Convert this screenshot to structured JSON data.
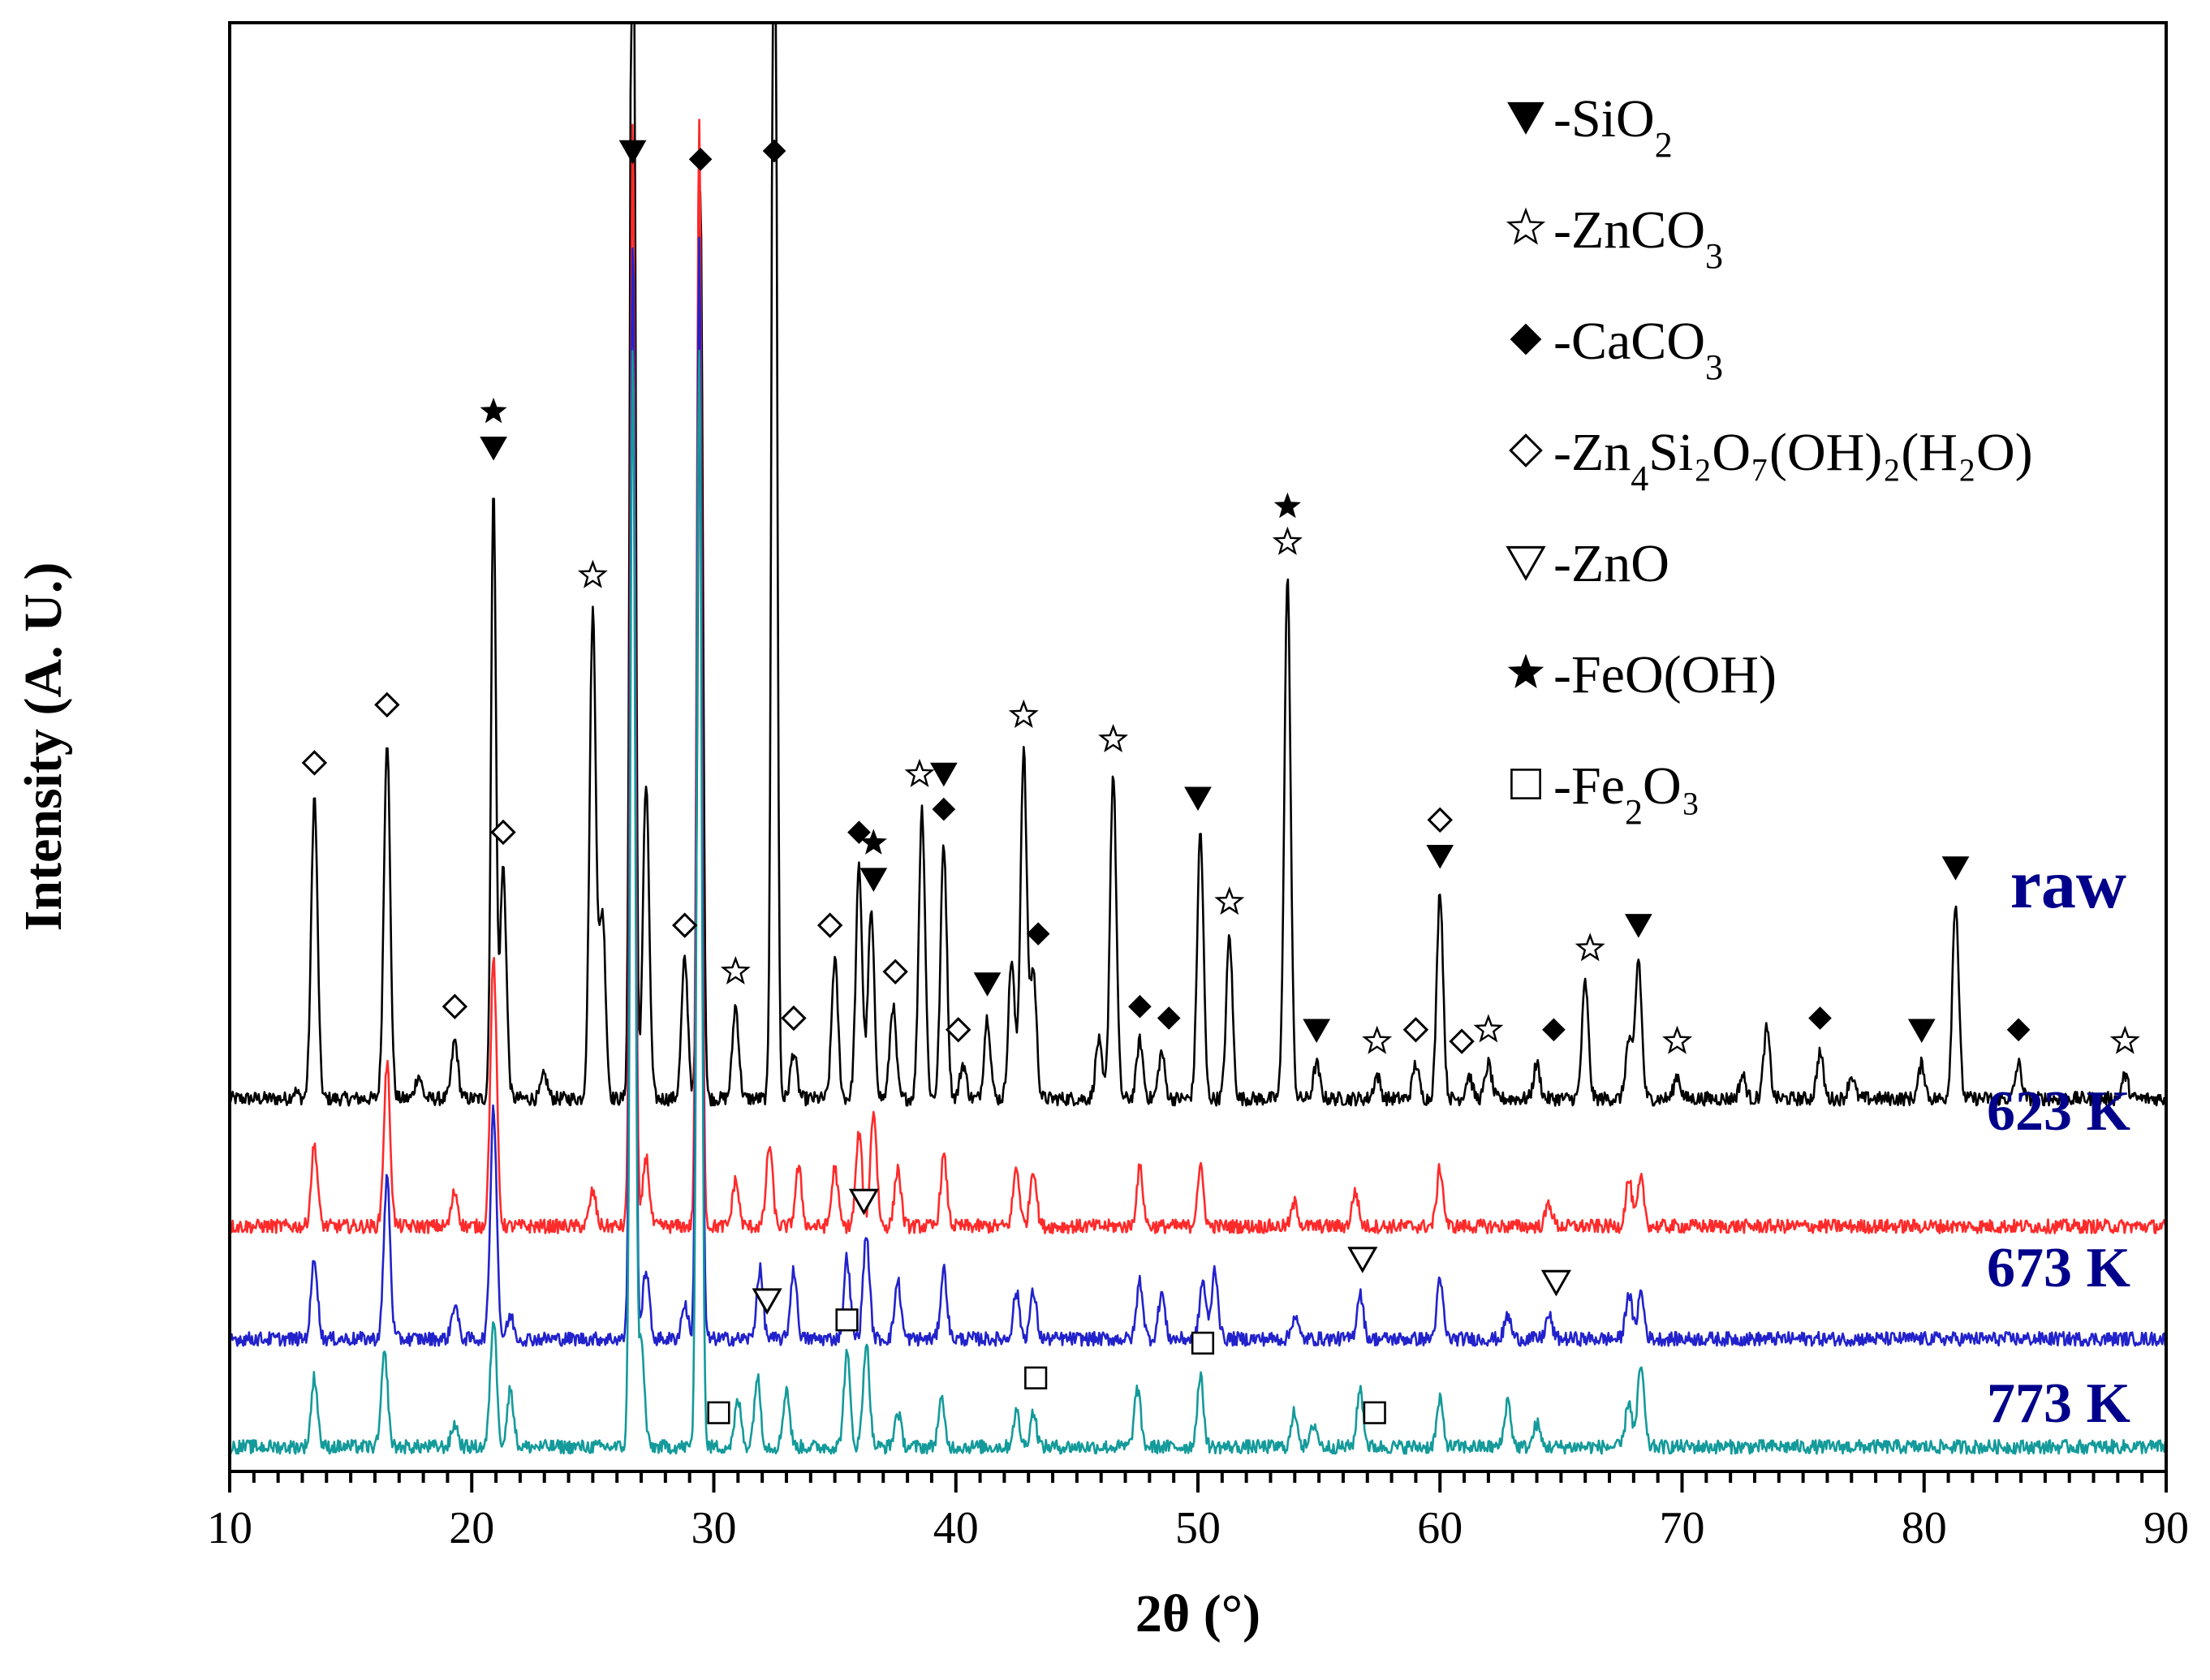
{
  "chart_data": {
    "type": "line",
    "title": "",
    "xlabel": "2θ (°)",
    "ylabel": "Intensity (A. U.)",
    "xlim": [
      10,
      90
    ],
    "xticks": [
      10,
      20,
      30,
      40,
      50,
      60,
      70,
      80,
      90
    ],
    "y_ticks_shown": false,
    "colors": {
      "raw": "#000000",
      "623 K": "#ff2a2a",
      "673 K": "#2222cc",
      "773 K": "#149a9a",
      "label": "#00008b"
    },
    "series": [
      {
        "name": "raw",
        "offset": 0.31,
        "baseline": 0.0,
        "noise": 0.006,
        "peaks": [
          [
            12.7,
            0.006
          ],
          [
            13.5,
            0.26
          ],
          [
            16.5,
            0.31
          ],
          [
            17.8,
            0.02
          ],
          [
            19.3,
            0.05
          ],
          [
            20.9,
            0.53
          ],
          [
            21.3,
            0.2
          ],
          [
            23,
            0.02
          ],
          [
            25.0,
            0.42
          ],
          [
            25.4,
            0.16
          ],
          [
            26.65,
            1.3
          ],
          [
            27.2,
            0.27
          ],
          [
            28.8,
            0.12
          ],
          [
            29.45,
            0.78
          ],
          [
            30.9,
            0.08
          ],
          [
            32.5,
            1.3
          ],
          [
            33.3,
            0.04
          ],
          [
            35.0,
            0.12
          ],
          [
            36.0,
            0.2
          ],
          [
            36.5,
            0.16
          ],
          [
            37.4,
            0.08
          ],
          [
            38.6,
            0.25
          ],
          [
            39.5,
            0.22
          ],
          [
            40.3,
            0.03
          ],
          [
            41.3,
            0.07
          ],
          [
            42.3,
            0.12
          ],
          [
            42.8,
            0.3
          ],
          [
            43.2,
            0.11
          ],
          [
            45.9,
            0.05
          ],
          [
            46.5,
            0.28
          ],
          [
            47.6,
            0.05
          ],
          [
            48.5,
            0.04
          ],
          [
            50.1,
            0.23
          ],
          [
            51.3,
            0.14
          ],
          [
            53.7,
            0.45
          ],
          [
            54.9,
            0.03
          ],
          [
            57.4,
            0.02
          ],
          [
            59.0,
            0.03
          ],
          [
            60.0,
            0.18
          ],
          [
            61.2,
            0.02
          ],
          [
            62.0,
            0.03
          ],
          [
            64.0,
            0.03
          ],
          [
            66.0,
            0.1
          ],
          [
            67.8,
            0.05
          ],
          [
            68.2,
            0.12
          ],
          [
            69.8,
            0.02
          ],
          [
            72.5,
            0.02
          ],
          [
            73.5,
            0.06
          ],
          [
            75.7,
            0.04
          ],
          [
            77.0,
            0.02
          ],
          [
            79.9,
            0.03
          ],
          [
            81.3,
            0.17
          ],
          [
            83.9,
            0.03
          ],
          [
            88.3,
            0.02
          ]
        ]
      },
      {
        "name": "623 K",
        "offset": 0.19,
        "baseline": 0.01,
        "noise": 0.006,
        "peaks": [
          [
            13.5,
            0.07
          ],
          [
            16.5,
            0.14
          ],
          [
            19.3,
            0.03
          ],
          [
            20.9,
            0.23
          ],
          [
            25.0,
            0.03
          ],
          [
            26.65,
            0.95
          ],
          [
            27.2,
            0.06
          ],
          [
            29.4,
            0.95
          ],
          [
            30.9,
            0.04
          ],
          [
            32.3,
            0.07
          ],
          [
            33.5,
            0.05
          ],
          [
            35.0,
            0.05
          ],
          [
            36.0,
            0.08
          ],
          [
            36.6,
            0.1
          ],
          [
            37.6,
            0.05
          ],
          [
            39.5,
            0.06
          ],
          [
            42.5,
            0.05
          ],
          [
            43.2,
            0.05
          ],
          [
            47.6,
            0.05
          ],
          [
            50.1,
            0.05
          ],
          [
            54.0,
            0.02
          ],
          [
            56.5,
            0.03
          ],
          [
            60.0,
            0.05
          ],
          [
            64.5,
            0.02
          ],
          [
            67.8,
            0.04
          ],
          [
            68.3,
            0.04
          ]
        ]
      },
      {
        "name": "673 K",
        "offset": 0.093,
        "baseline": 0.01,
        "noise": 0.006,
        "peaks": [
          [
            13.5,
            0.07
          ],
          [
            16.5,
            0.14
          ],
          [
            19.3,
            0.03
          ],
          [
            20.9,
            0.2
          ],
          [
            21.6,
            0.02
          ],
          [
            26.65,
            0.95
          ],
          [
            27.2,
            0.06
          ],
          [
            28.8,
            0.03
          ],
          [
            29.4,
            0.95
          ],
          [
            31.9,
            0.06
          ],
          [
            33.3,
            0.06
          ],
          [
            35.5,
            0.07
          ],
          [
            36.3,
            0.09
          ],
          [
            37.6,
            0.05
          ],
          [
            39.5,
            0.06
          ],
          [
            42.5,
            0.04
          ],
          [
            43.2,
            0.04
          ],
          [
            47.6,
            0.05
          ],
          [
            48.5,
            0.04
          ],
          [
            50.2,
            0.05
          ],
          [
            50.7,
            0.06
          ],
          [
            54.0,
            0.02
          ],
          [
            56.7,
            0.04
          ],
          [
            60.0,
            0.05
          ],
          [
            62.8,
            0.02
          ],
          [
            64.5,
            0.02
          ],
          [
            67.8,
            0.04
          ],
          [
            68.3,
            0.04
          ]
        ]
      },
      {
        "name": "773 K",
        "offset": 0.0,
        "baseline": 0.01,
        "noise": 0.006,
        "peaks": [
          [
            13.5,
            0.06
          ],
          [
            16.4,
            0.08
          ],
          [
            19.3,
            0.02
          ],
          [
            20.9,
            0.11
          ],
          [
            21.6,
            0.05
          ],
          [
            26.65,
            0.95
          ],
          [
            27.0,
            0.09
          ],
          [
            29.4,
            0.95
          ],
          [
            31.0,
            0.04
          ],
          [
            31.8,
            0.06
          ],
          [
            33.0,
            0.05
          ],
          [
            35.5,
            0.08
          ],
          [
            36.3,
            0.09
          ],
          [
            37.6,
            0.03
          ],
          [
            39.4,
            0.04
          ],
          [
            42.5,
            0.03
          ],
          [
            43.2,
            0.03
          ],
          [
            47.5,
            0.05
          ],
          [
            50.1,
            0.06
          ],
          [
            54.0,
            0.03
          ],
          [
            54.8,
            0.02
          ],
          [
            56.7,
            0.05
          ],
          [
            60.0,
            0.04
          ],
          [
            62.8,
            0.04
          ],
          [
            64.0,
            0.02
          ],
          [
            67.8,
            0.04
          ],
          [
            68.3,
            0.07
          ]
        ]
      }
    ],
    "series_labels": [
      "raw",
      "623 K",
      "673 K",
      "773 K"
    ],
    "legend": {
      "placement": "top-right",
      "entries": [
        {
          "symbol": "filled-down-triangle",
          "text": "-SiO",
          "sub": "2",
          "rest": ""
        },
        {
          "symbol": "open-star",
          "text": "-ZnCO",
          "sub": "3",
          "rest": ""
        },
        {
          "symbol": "filled-diamond",
          "text": "-CaCO",
          "sub": "3",
          "rest": ""
        },
        {
          "symbol": "open-diamond",
          "text": "-Zn",
          "sub": "4",
          "rest": "Si₂O₇(OH)₂(H₂O)"
        },
        {
          "symbol": "open-down-triangle",
          "text": "-ZnO",
          "sub": "",
          "rest": ""
        },
        {
          "symbol": "filled-star",
          "text": "-FeO(OH)",
          "sub": "",
          "rest": ""
        },
        {
          "symbol": "open-square",
          "text": "-Fe",
          "sub": "2",
          "rest": "O₃"
        }
      ]
    },
    "markers": [
      {
        "series": "raw",
        "sym": "filled-down-triangle",
        "x": 20.9,
        "peak": 20.9
      },
      {
        "series": "raw",
        "sym": "filled-star",
        "x": 20.9,
        "peak": 20.9,
        "stack": 1
      },
      {
        "series": "raw",
        "sym": "open-diamond",
        "x": 13.5,
        "peak": 13.5
      },
      {
        "series": "raw",
        "sym": "open-diamond",
        "x": 16.5,
        "peak": 16.5
      },
      {
        "series": "raw",
        "sym": "open-diamond",
        "x": 19.3,
        "peak": 19.3
      },
      {
        "series": "raw",
        "sym": "open-diamond",
        "x": 21.3,
        "peak": 21.3
      },
      {
        "series": "raw",
        "sym": "open-star",
        "x": 25.0,
        "peak": 25.0
      },
      {
        "series": "raw",
        "sym": "filled-down-triangle",
        "x": 26.65,
        "peak": 26.65
      },
      {
        "series": "raw",
        "sym": "open-diamond",
        "x": 28.8,
        "peak": 28.8
      },
      {
        "series": "raw",
        "sym": "filled-diamond",
        "x": 29.45,
        "peak": 29.45
      },
      {
        "series": "raw",
        "sym": "open-star",
        "x": 30.9,
        "peak": 30.9
      },
      {
        "series": "raw",
        "sym": "filled-diamond",
        "x": 32.5,
        "peak": 32.5
      },
      {
        "series": "raw",
        "sym": "open-diamond",
        "x": 33.3,
        "peak": 33.3
      },
      {
        "series": "raw",
        "sym": "open-diamond",
        "x": 34.8,
        "peak": 35.0
      },
      {
        "series": "raw",
        "sym": "filled-diamond",
        "x": 36.0,
        "peak": 36.0
      },
      {
        "series": "raw",
        "sym": "filled-down-triangle",
        "x": 36.6,
        "peak": 36.5
      },
      {
        "series": "raw",
        "sym": "filled-star",
        "x": 36.6,
        "peak": 36.5,
        "stack": 1
      },
      {
        "series": "raw",
        "sym": "open-diamond",
        "x": 37.5,
        "peak": 37.4
      },
      {
        "series": "raw",
        "sym": "open-star",
        "x": 38.5,
        "peak": 38.6
      },
      {
        "series": "raw",
        "sym": "filled-diamond",
        "x": 39.5,
        "peak": 39.5
      },
      {
        "series": "raw",
        "sym": "filled-down-triangle",
        "x": 39.5,
        "peak": 39.5,
        "stack": 1
      },
      {
        "series": "raw",
        "sym": "open-diamond",
        "x": 40.1,
        "peak": 40.3
      },
      {
        "series": "raw",
        "sym": "filled-down-triangle",
        "x": 41.3,
        "peak": 41.3
      },
      {
        "series": "raw",
        "sym": "open-star",
        "x": 42.8,
        "peak": 42.8
      },
      {
        "series": "raw",
        "sym": "filled-diamond",
        "x": 43.4,
        "peak": 43.2
      },
      {
        "series": "raw",
        "sym": "open-star",
        "x": 46.5,
        "peak": 46.5
      },
      {
        "series": "raw",
        "sym": "filled-diamond",
        "x": 47.6,
        "peak": 47.6
      },
      {
        "series": "raw",
        "sym": "filled-diamond",
        "x": 48.8,
        "peak": 48.5
      },
      {
        "series": "raw",
        "sym": "filled-down-triangle",
        "x": 50.0,
        "peak": 50.1
      },
      {
        "series": "raw",
        "sym": "open-star",
        "x": 51.3,
        "peak": 51.3
      },
      {
        "series": "raw",
        "sym": "open-star",
        "x": 53.7,
        "peak": 53.7
      },
      {
        "series": "raw",
        "sym": "filled-star",
        "x": 53.7,
        "peak": 53.7,
        "stack": 1
      },
      {
        "series": "raw",
        "sym": "filled-down-triangle",
        "x": 54.9,
        "peak": 54.9
      },
      {
        "series": "raw",
        "sym": "open-star",
        "x": 57.4,
        "peak": 57.4
      },
      {
        "series": "raw",
        "sym": "open-diamond",
        "x": 59.0,
        "peak": 59.0
      },
      {
        "series": "raw",
        "sym": "filled-down-triangle",
        "x": 60.0,
        "peak": 60.0
      },
      {
        "series": "raw",
        "sym": "open-diamond",
        "x": 60.0,
        "peak": 60.0,
        "stack": 1
      },
      {
        "series": "raw",
        "sym": "open-diamond",
        "x": 60.9,
        "peak": 61.2
      },
      {
        "series": "raw",
        "sym": "open-star",
        "x": 62.0,
        "peak": 62.0
      },
      {
        "series": "raw",
        "sym": "filled-diamond",
        "x": 64.7,
        "peak": 64.0
      },
      {
        "series": "raw",
        "sym": "open-star",
        "x": 66.2,
        "peak": 66.0
      },
      {
        "series": "raw",
        "sym": "filled-down-triangle",
        "x": 68.2,
        "peak": 68.2
      },
      {
        "series": "raw",
        "sym": "open-star",
        "x": 69.8,
        "peak": 69.8
      },
      {
        "series": "raw",
        "sym": "filled-diamond",
        "x": 75.7,
        "peak": 75.7
      },
      {
        "series": "raw",
        "sym": "filled-down-triangle",
        "x": 79.9,
        "peak": 79.9
      },
      {
        "series": "raw",
        "sym": "filled-down-triangle",
        "x": 81.3,
        "peak": 81.3
      },
      {
        "series": "raw",
        "sym": "filled-diamond",
        "x": 83.9,
        "peak": 83.9
      },
      {
        "series": "raw",
        "sym": "open-star",
        "x": 88.3,
        "peak": 88.3
      },
      {
        "series": "673 K",
        "sym": "open-down-triangle",
        "x": 32.2,
        "peak": 32.2
      },
      {
        "series": "673 K",
        "sym": "open-down-triangle",
        "x": 36.2,
        "peak": 36.3
      },
      {
        "series": "673 K",
        "sym": "open-down-triangle",
        "x": 56.8,
        "peak": 56.7
      },
      {
        "series": "673 K",
        "sym": "open-down-triangle",
        "x": 64.8,
        "peak": 64.5
      },
      {
        "series": "773 K",
        "sym": "open-square",
        "x": 30.2,
        "peak": 30.2
      },
      {
        "series": "773 K",
        "sym": "open-square",
        "x": 35.5,
        "peak": 35.5
      },
      {
        "series": "773 K",
        "sym": "open-square",
        "x": 43.3,
        "peak": 43.2
      },
      {
        "series": "773 K",
        "sym": "open-square",
        "x": 50.2,
        "peak": 50.1
      },
      {
        "series": "773 K",
        "sym": "open-square",
        "x": 57.3,
        "peak": 57.3
      }
    ]
  }
}
